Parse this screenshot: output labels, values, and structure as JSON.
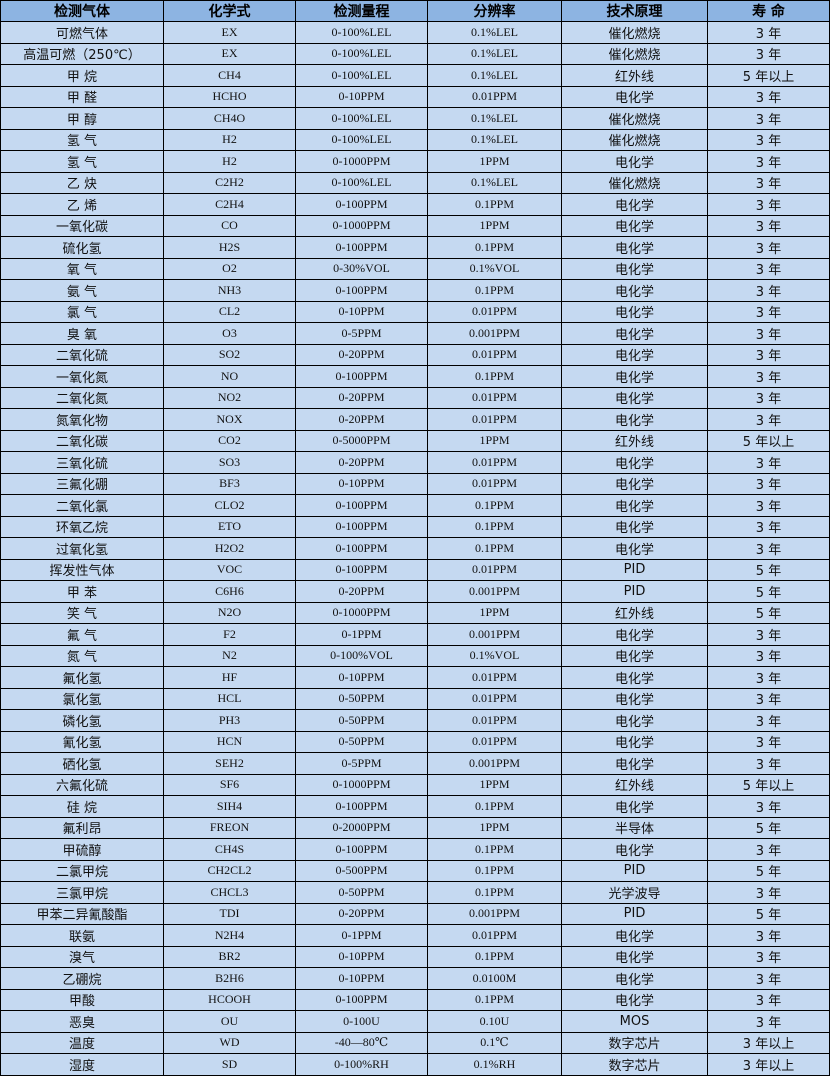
{
  "colors": {
    "header_bg": "#8db4e2",
    "row_bg": "#c5d9f1",
    "border": "#000000"
  },
  "headers": [
    "检测气体",
    "化学式",
    "检测量程",
    "分辨率",
    "技术原理",
    "寿 命"
  ],
  "rows": [
    [
      "可燃气体",
      "EX",
      "0-100%LEL",
      "0.1%LEL",
      "催化燃烧",
      "3 年"
    ],
    [
      "高温可燃（250℃）",
      "EX",
      "0-100%LEL",
      "0.1%LEL",
      "催化燃烧",
      "3 年"
    ],
    [
      "甲 烷",
      "CH4",
      "0-100%LEL",
      "0.1%LEL",
      "红外线",
      "5 年以上"
    ],
    [
      "甲 醛",
      "HCHO",
      "0-10PPM",
      "0.01PPM",
      "电化学",
      "3 年"
    ],
    [
      "甲 醇",
      "CH4O",
      "0-100%LEL",
      "0.1%LEL",
      "催化燃烧",
      "3 年"
    ],
    [
      "氢 气",
      "H2",
      "0-100%LEL",
      "0.1%LEL",
      "催化燃烧",
      "3 年"
    ],
    [
      "氢 气",
      "H2",
      "0-1000PPM",
      "1PPM",
      "电化学",
      "3 年"
    ],
    [
      "乙 炔",
      "C2H2",
      "0-100%LEL",
      "0.1%LEL",
      "催化燃烧",
      "3 年"
    ],
    [
      "乙 烯",
      "C2H4",
      "0-100PPM",
      "0.1PPM",
      "电化学",
      "3 年"
    ],
    [
      "一氧化碳",
      "CO",
      "0-1000PPM",
      "1PPM",
      "电化学",
      "3 年"
    ],
    [
      "硫化氢",
      "H2S",
      "0-100PPM",
      "0.1PPM",
      "电化学",
      "3 年"
    ],
    [
      "氧 气",
      "O2",
      "0-30%VOL",
      "0.1%VOL",
      "电化学",
      "3 年"
    ],
    [
      "氨 气",
      "NH3",
      "0-100PPM",
      "0.1PPM",
      "电化学",
      "3 年"
    ],
    [
      "氯 气",
      "CL2",
      "0-10PPM",
      "0.01PPM",
      "电化学",
      "3 年"
    ],
    [
      "臭 氧",
      "O3",
      "0-5PPM",
      "0.001PPM",
      "电化学",
      "3 年"
    ],
    [
      "二氧化硫",
      "SO2",
      "0-20PPM",
      "0.01PPM",
      "电化学",
      "3 年"
    ],
    [
      "一氧化氮",
      "NO",
      "0-100PPM",
      "0.1PPM",
      "电化学",
      "3 年"
    ],
    [
      "二氧化氮",
      "NO2",
      "0-20PPM",
      "0.01PPM",
      "电化学",
      "3 年"
    ],
    [
      "氮氧化物",
      "NOX",
      "0-20PPM",
      "0.01PPM",
      "电化学",
      "3 年"
    ],
    [
      "二氧化碳",
      "CO2",
      "0-5000PPM",
      "1PPM",
      "红外线",
      "5 年以上"
    ],
    [
      "三氧化硫",
      "SO3",
      "0-20PPM",
      "0.01PPM",
      "电化学",
      "3 年"
    ],
    [
      "三氟化硼",
      "BF3",
      "0-10PPM",
      "0.01PPM",
      "电化学",
      "3 年"
    ],
    [
      "二氧化氯",
      "CLO2",
      "0-100PPM",
      "0.1PPM",
      "电化学",
      "3 年"
    ],
    [
      "环氧乙烷",
      "ETO",
      "0-100PPM",
      "0.1PPM",
      "电化学",
      "3 年"
    ],
    [
      "过氧化氢",
      "H2O2",
      "0-100PPM",
      "0.1PPM",
      "电化学",
      "3 年"
    ],
    [
      "挥发性气体",
      "VOC",
      "0-100PPM",
      "0.01PPM",
      "PID",
      "5 年"
    ],
    [
      "甲 苯",
      "C6H6",
      "0-20PPM",
      "0.001PPM",
      "PID",
      "5 年"
    ],
    [
      "笑 气",
      "N2O",
      "0-1000PPM",
      "1PPM",
      "红外线",
      "5 年"
    ],
    [
      "氟 气",
      "F2",
      "0-1PPM",
      "0.001PPM",
      "电化学",
      "3 年"
    ],
    [
      "氮 气",
      "N2",
      "0-100%VOL",
      "0.1%VOL",
      "电化学",
      "3 年"
    ],
    [
      "氟化氢",
      "HF",
      "0-10PPM",
      "0.01PPM",
      "电化学",
      "3 年"
    ],
    [
      "氯化氢",
      "HCL",
      "0-50PPM",
      "0.01PPM",
      "电化学",
      "3 年"
    ],
    [
      "磷化氢",
      "PH3",
      "0-50PPM",
      "0.01PPM",
      "电化学",
      "3 年"
    ],
    [
      "氰化氢",
      "HCN",
      "0-50PPM",
      "0.01PPM",
      "电化学",
      "3 年"
    ],
    [
      "硒化氢",
      "SEH2",
      "0-5PPM",
      "0.001PPM",
      "电化学",
      "3 年"
    ],
    [
      "六氟化硫",
      "SF6",
      "0-1000PPM",
      "1PPM",
      "红外线",
      "5 年以上"
    ],
    [
      "硅 烷",
      "SIH4",
      "0-100PPM",
      "0.1PPM",
      "电化学",
      "3 年"
    ],
    [
      "氟利昂",
      "FREON",
      "0-2000PPM",
      "1PPM",
      "半导体",
      "5 年"
    ],
    [
      "甲硫醇",
      "CH4S",
      "0-100PPM",
      "0.1PPM",
      "电化学",
      "3 年"
    ],
    [
      "二氯甲烷",
      "CH2CL2",
      "0-500PPM",
      "0.1PPM",
      "PID",
      "5 年"
    ],
    [
      "三氯甲烷",
      "CHCL3",
      "0-50PPM",
      "0.1PPM",
      "光学波导",
      "3 年"
    ],
    [
      "甲苯二异氰酸酯",
      "TDI",
      "0-20PPM",
      "0.001PPM",
      "PID",
      "5 年"
    ],
    [
      "联氨",
      "N2H4",
      "0-1PPM",
      "0.01PPM",
      "电化学",
      "3 年"
    ],
    [
      "溴气",
      "BR2",
      "0-10PPM",
      "0.1PPM",
      "电化学",
      "3 年"
    ],
    [
      "乙硼烷",
      "B2H6",
      "0-10PPM",
      "0.0100M",
      "电化学",
      "3 年"
    ],
    [
      "甲酸",
      "HCOOH",
      "0-100PPM",
      "0.1PPM",
      "电化学",
      "3 年"
    ],
    [
      "恶臭",
      "OU",
      "0-100U",
      "0.10U",
      "MOS",
      "3 年"
    ],
    [
      "温度",
      "WD",
      "-40—80℃",
      "0.1℃",
      "数字芯片",
      "3 年以上"
    ],
    [
      "湿度",
      "SD",
      "0-100%RH",
      "0.1%RH",
      "数字芯片",
      "3 年以上"
    ]
  ]
}
